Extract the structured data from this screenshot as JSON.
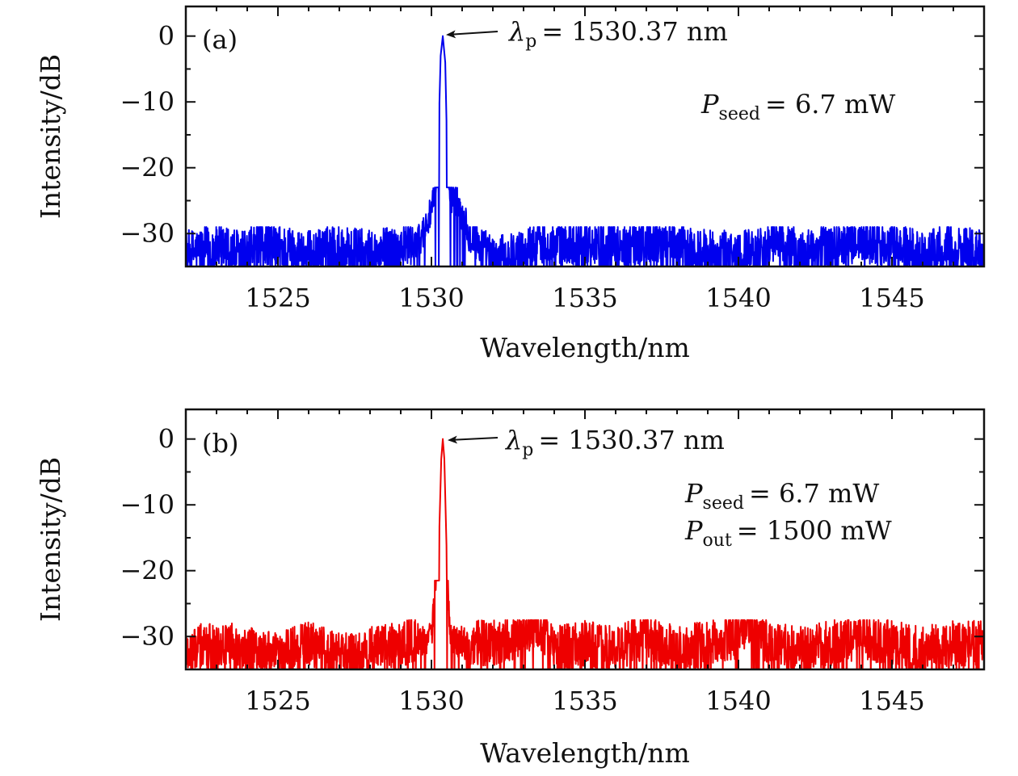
{
  "chart_data": [
    {
      "type": "line",
      "panel_label": "(a)",
      "xlabel": "Wavelength/nm",
      "ylabel": "Intensity/dB",
      "xlim": [
        1522,
        1548
      ],
      "ylim": [
        -35,
        4.5
      ],
      "x_ticks": [
        1525,
        1530,
        1535,
        1540,
        1545
      ],
      "y_ticks": [
        0,
        -10,
        -20,
        -30
      ],
      "color": "#0000ee",
      "series": [
        {
          "peak_wavelength": 1530.37,
          "noise_floor_range": [
            -35,
            -29
          ],
          "points": [
            [
              1522.0,
              -33
            ],
            [
              1523.0,
              -32
            ],
            [
              1524.0,
              -33
            ],
            [
              1524.5,
              -31
            ],
            [
              1525.0,
              -32
            ],
            [
              1526.0,
              -33
            ],
            [
              1527.0,
              -32
            ],
            [
              1528.0,
              -33
            ],
            [
              1529.0,
              -32
            ],
            [
              1529.6,
              -31
            ],
            [
              1529.9,
              -28
            ],
            [
              1530.1,
              -25
            ],
            [
              1530.25,
              -12
            ],
            [
              1530.3,
              -3
            ],
            [
              1530.37,
              0
            ],
            [
              1530.45,
              -4
            ],
            [
              1530.5,
              -15
            ],
            [
              1530.6,
              -24
            ],
            [
              1530.8,
              -25
            ],
            [
              1531.0,
              -27
            ],
            [
              1531.3,
              -30
            ],
            [
              1531.6,
              -32
            ],
            [
              1532.0,
              -34
            ],
            [
              1533.0,
              -33
            ],
            [
              1533.5,
              -31
            ],
            [
              1534.0,
              -32
            ],
            [
              1535.0,
              -31
            ],
            [
              1536.0,
              -32
            ],
            [
              1537.0,
              -31
            ],
            [
              1538.0,
              -32
            ],
            [
              1539.0,
              -33
            ],
            [
              1540.0,
              -33
            ],
            [
              1541.0,
              -32
            ],
            [
              1541.3,
              -31
            ],
            [
              1542.0,
              -33
            ],
            [
              1543.0,
              -32
            ],
            [
              1544.0,
              -31
            ],
            [
              1545.0,
              -32
            ],
            [
              1546.0,
              -33
            ],
            [
              1547.0,
              -32
            ],
            [
              1548.0,
              -33
            ]
          ]
        }
      ],
      "annotations": {
        "arrow_symbol": "λ",
        "arrow_subscript": "p",
        "arrow_text": "= 1530.37 nm",
        "lines": [
          {
            "symbol": "P",
            "subscript": "seed",
            "text": "= 6.7 mW"
          }
        ]
      }
    },
    {
      "type": "line",
      "panel_label": "(b)",
      "xlabel": "Wavelength/nm",
      "ylabel": "Intensity/dB",
      "xlim": [
        1522,
        1548
      ],
      "ylim": [
        -35,
        4.5
      ],
      "x_ticks": [
        1525,
        1530,
        1535,
        1540,
        1545
      ],
      "y_ticks": [
        0,
        -10,
        -20,
        -30
      ],
      "color": "#ee0000",
      "series": [
        {
          "peak_wavelength": 1530.37,
          "noise_floor_range": [
            -35,
            -27.5
          ],
          "points": [
            [
              1522.0,
              -32
            ],
            [
              1523.0,
              -31
            ],
            [
              1524.0,
              -32
            ],
            [
              1525.0,
              -33
            ],
            [
              1526.0,
              -31
            ],
            [
              1527.0,
              -33
            ],
            [
              1528.0,
              -32
            ],
            [
              1529.0,
              -31
            ],
            [
              1530.0,
              -30
            ],
            [
              1530.25,
              -15
            ],
            [
              1530.32,
              -3
            ],
            [
              1530.37,
              0
            ],
            [
              1530.42,
              -3
            ],
            [
              1530.5,
              -18
            ],
            [
              1530.6,
              -30
            ],
            [
              1531.0,
              -31
            ],
            [
              1532.0,
              -31
            ],
            [
              1533.0,
              -30
            ],
            [
              1533.5,
              -28
            ],
            [
              1534.0,
              -32
            ],
            [
              1535.0,
              -31
            ],
            [
              1536.0,
              -32
            ],
            [
              1537.0,
              -30
            ],
            [
              1538.0,
              -32
            ],
            [
              1539.0,
              -31
            ],
            [
              1540.0,
              -30
            ],
            [
              1540.3,
              -28
            ],
            [
              1541.0,
              -31
            ],
            [
              1542.0,
              -32
            ],
            [
              1543.0,
              -31
            ],
            [
              1544.0,
              -30
            ],
            [
              1545.0,
              -31
            ],
            [
              1546.0,
              -32
            ],
            [
              1547.0,
              -31
            ],
            [
              1548.0,
              -31
            ]
          ]
        }
      ],
      "annotations": {
        "arrow_symbol": "λ",
        "arrow_subscript": "p",
        "arrow_text": "= 1530.37 nm",
        "lines": [
          {
            "symbol": "P",
            "subscript": "seed",
            "text": "= 6.7 mW"
          },
          {
            "symbol": "P",
            "subscript": "out",
            "text": "= 1500 mW"
          }
        ]
      }
    }
  ]
}
